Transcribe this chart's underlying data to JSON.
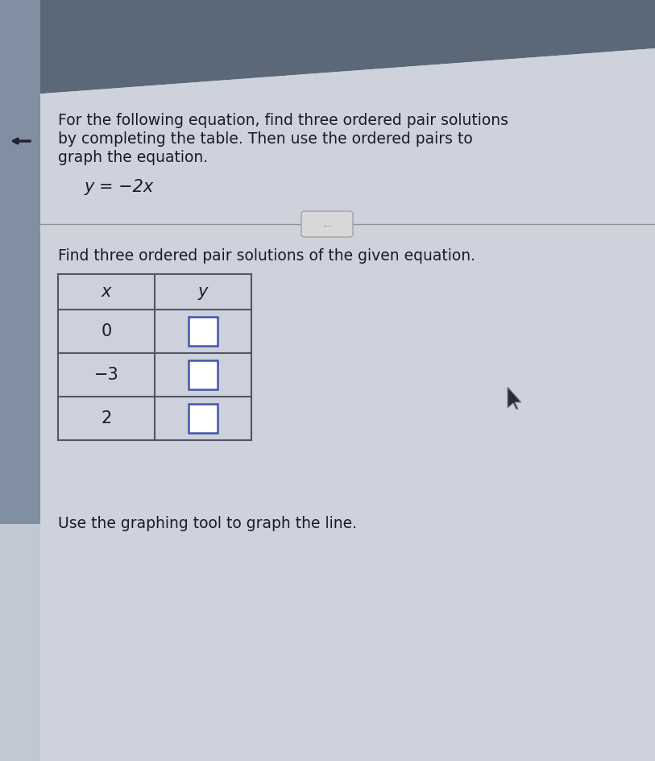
{
  "bg_color_main": "#cdd2dc",
  "bg_color_light": "#d5dae2",
  "bg_top_dark": "#707c8c",
  "left_strip_color": "#8090a0",
  "left_strip_bottom_color": "#c0c8d4",
  "title_line1": "For the following equation, find three ordered pair solutions",
  "title_line2": "by completing the table. Then use the ordered pairs to",
  "title_line3": "graph the equation.",
  "equation": "y = −2x",
  "divider_color": "#909090",
  "ellipsis_text": "...",
  "ellipsis_bg": "#d8d8d8",
  "ellipsis_border": "#aaaaaa",
  "subtitle": "Find three ordered pair solutions of the given equation.",
  "table_header_x": "x",
  "table_header_y": "y",
  "table_x_values": [
    "0",
    "−3",
    "2"
  ],
  "table_border_color": "#555566",
  "table_bg": "#ccd1db",
  "input_box_fill": "#f0f4ff",
  "input_box_border": "#4455aa",
  "footer_text": "Use the graphing tool to graph the line.",
  "arrow_color": "#222233",
  "font_size_title": 13.5,
  "font_size_equation": 15,
  "font_size_subtitle": 13.5,
  "font_size_table": 15,
  "font_size_footer": 13.5
}
